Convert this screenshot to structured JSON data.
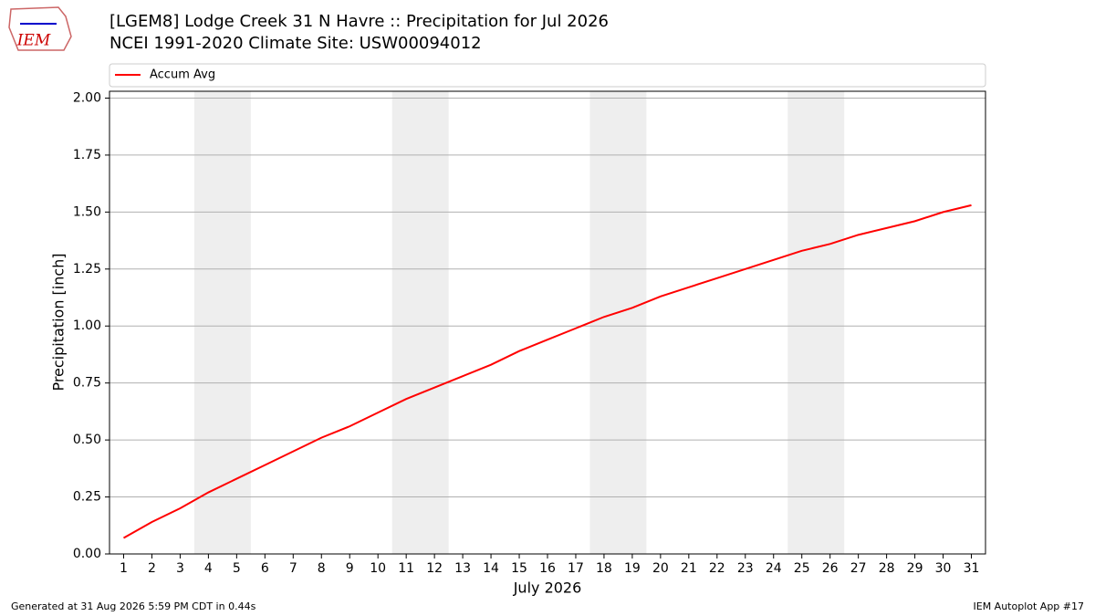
{
  "chart_data": {
    "type": "line",
    "logo_text": "IEM",
    "title": "[LGEM8] Lodge Creek 31 N Havre :: Precipitation for Jul 2026",
    "subtitle": "NCEI 1991-2020 Climate Site: USW00094012",
    "x_label": "July 2026",
    "y_label": "Precipitation [inch]",
    "x": [
      1,
      2,
      3,
      4,
      5,
      6,
      7,
      8,
      9,
      10,
      11,
      12,
      13,
      14,
      15,
      16,
      17,
      18,
      19,
      20,
      21,
      22,
      23,
      24,
      25,
      26,
      27,
      28,
      29,
      30,
      31
    ],
    "series": [
      {
        "name": "Accum Avg",
        "color": "#ff0000",
        "values": [
          0.07,
          0.14,
          0.2,
          0.27,
          0.33,
          0.39,
          0.45,
          0.51,
          0.56,
          0.62,
          0.68,
          0.73,
          0.78,
          0.83,
          0.89,
          0.94,
          0.99,
          1.04,
          1.08,
          1.13,
          1.17,
          1.21,
          1.25,
          1.29,
          1.33,
          1.36,
          1.4,
          1.43,
          1.46,
          1.5,
          1.53
        ]
      }
    ],
    "shaded_ranges": [
      [
        3.5,
        5.5
      ],
      [
        10.5,
        12.5
      ],
      [
        17.5,
        19.5
      ],
      [
        24.5,
        26.5
      ]
    ],
    "shade_color": "#eeeeee",
    "xlim": [
      0.5,
      31.5
    ],
    "xticks": [
      1,
      2,
      3,
      4,
      5,
      6,
      7,
      8,
      9,
      10,
      11,
      12,
      13,
      14,
      15,
      16,
      17,
      18,
      19,
      20,
      21,
      22,
      23,
      24,
      25,
      26,
      27,
      28,
      29,
      30,
      31
    ],
    "ylim": [
      0,
      2.03
    ],
    "yticks": [
      {
        "value": 0,
        "label": "0.00"
      },
      {
        "value": 0.25,
        "label": "0.25"
      },
      {
        "value": 0.5,
        "label": "0.50"
      },
      {
        "value": 0.75,
        "label": "0.75"
      },
      {
        "value": 1,
        "label": "1.00"
      },
      {
        "value": 1.25,
        "label": "1.25"
      },
      {
        "value": 1.5,
        "label": "1.50"
      },
      {
        "value": 1.75,
        "label": "1.75"
      },
      {
        "value": 2,
        "label": "2.00"
      }
    ],
    "grid": true,
    "legend": "top",
    "footer_left": "Generated at 31 Aug 2026 5:59 PM CDT in 0.44s",
    "footer_right": "IEM Autoplot App #17"
  }
}
